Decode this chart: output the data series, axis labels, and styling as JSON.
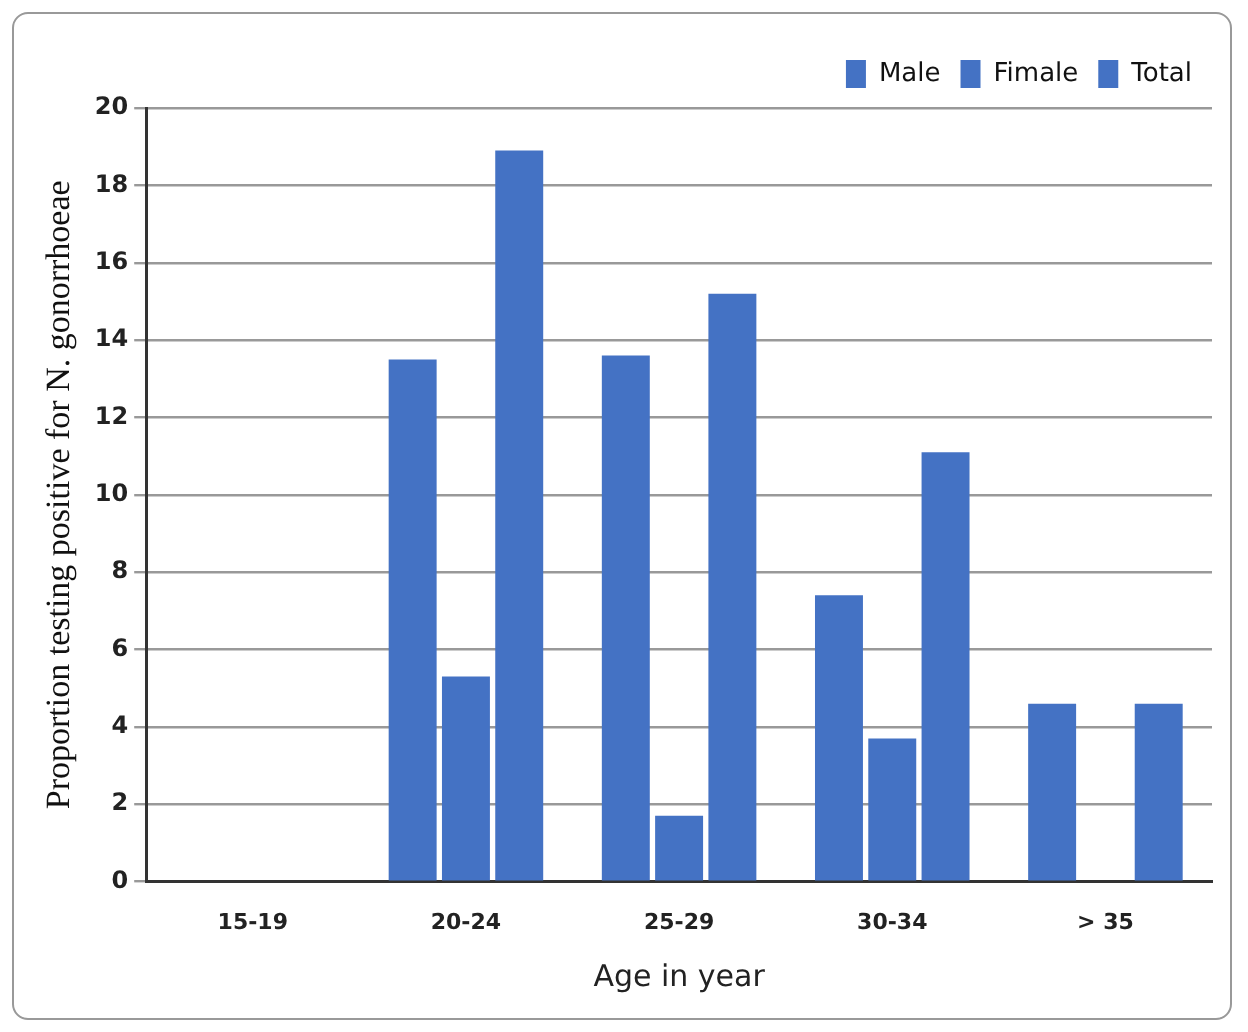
{
  "chart_data": {
    "type": "bar",
    "xlabel": "Age in year",
    "ylabel": "Proportion testing positive for N. gonorrhoeae",
    "categories": [
      "15-19",
      "20-24",
      "25-29",
      "30-34",
      "> 35"
    ],
    "series": [
      {
        "name": "Male",
        "color": "#4472c4",
        "values": [
          0,
          13.5,
          13.6,
          7.4,
          4.6
        ]
      },
      {
        "name": "Fimale",
        "color": "#4472c4",
        "values": [
          0,
          5.3,
          1.7,
          3.7,
          0
        ]
      },
      {
        "name": "Total",
        "color": "#4472c4",
        "values": [
          0,
          18.9,
          15.2,
          11.1,
          4.6
        ]
      }
    ],
    "ylim": [
      0,
      20
    ],
    "yticks": [
      0,
      2,
      4,
      6,
      8,
      10,
      12,
      14,
      16,
      18,
      20
    ],
    "grid": "y",
    "legend": "top right"
  }
}
